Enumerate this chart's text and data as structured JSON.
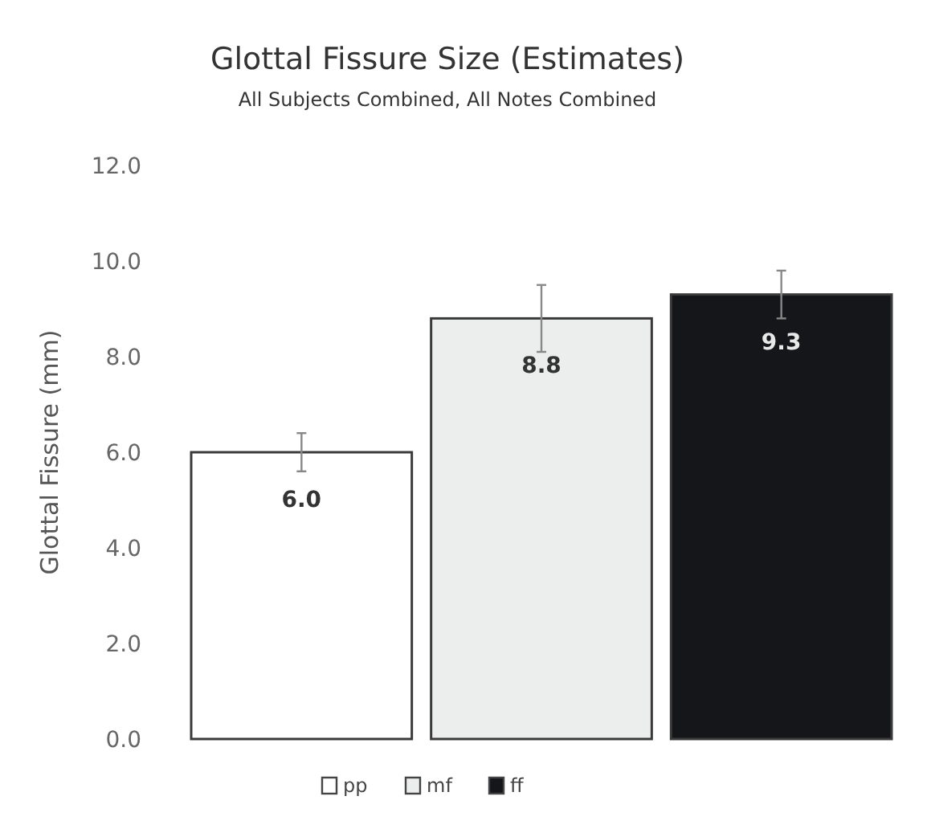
{
  "chart_data": {
    "type": "bar",
    "title": "Glottal Fissure Size (Estimates)",
    "subtitle": "All Subjects Combined, All Notes Combined",
    "ylabel": "Glottal Fissure (mm)",
    "categories": [
      null
    ],
    "series": [
      {
        "name": "pp",
        "color": "#ffffff",
        "values": [
          6.0
        ],
        "errors": [
          0.4
        ],
        "value_labels": [
          "6.0"
        ]
      },
      {
        "name": "mf",
        "color": "#eceeee",
        "values": [
          8.8
        ],
        "errors": [
          0.7
        ],
        "value_labels": [
          "8.8"
        ]
      },
      {
        "name": "ff",
        "color": "#15161a",
        "values": [
          9.3
        ],
        "errors": [
          0.5
        ],
        "value_labels": [
          "9.3"
        ]
      }
    ],
    "ylim": [
      0,
      12
    ],
    "yticks": [
      {
        "value": 0,
        "label": "0.0"
      },
      {
        "value": 2,
        "label": "2.0"
      },
      {
        "value": 4,
        "label": "4.0"
      },
      {
        "value": 6,
        "label": "6.0"
      },
      {
        "value": 8,
        "label": "8.0"
      },
      {
        "value": 10,
        "label": "10.0"
      },
      {
        "value": 12,
        "label": "12.0"
      }
    ],
    "legend": "bottom",
    "grid": false
  }
}
